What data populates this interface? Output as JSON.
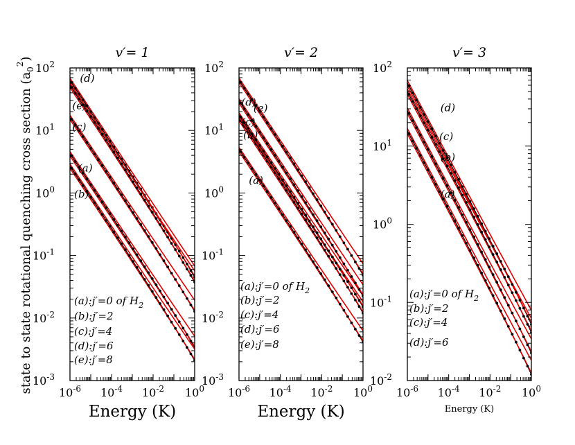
{
  "chart_data": [
    {
      "type": "line",
      "title": "v′= 1",
      "xlabel": "Energy (K)",
      "ylabel": "state to state rotational quenching cross section (a0^2)",
      "xscale": "log",
      "yscale": "log",
      "xlim": [
        1e-06,
        1
      ],
      "ylim": [
        0.001,
        100
      ],
      "x_ticks": [
        {
          "v": 1e-06,
          "base": "10",
          "exp": "-6"
        },
        {
          "v": 0.0001,
          "base": "10",
          "exp": "-4"
        },
        {
          "v": 0.01,
          "base": "10",
          "exp": "-2"
        },
        {
          "v": 1,
          "base": "10",
          "exp": "0"
        }
      ],
      "y_ticks": [
        {
          "v": 0.001,
          "base": "10",
          "exp": "-3"
        },
        {
          "v": 0.01,
          "base": "10",
          "exp": "-2"
        },
        {
          "v": 0.1,
          "base": "10",
          "exp": "-1"
        },
        {
          "v": 1,
          "base": "10",
          "exp": "0"
        },
        {
          "v": 10,
          "base": "10",
          "exp": "1"
        },
        {
          "v": 100,
          "base": "10",
          "exp": "2"
        }
      ],
      "series": [
        {
          "name": "(a)",
          "x": [
            5e-07,
            1
          ],
          "y": [
            6.0,
            0.0045
          ],
          "curve_label": {
            "x": 2.5e-06,
            "y": 2.2
          }
        },
        {
          "name": "(b)",
          "x": [
            5e-07,
            1
          ],
          "y": [
            3.8,
            0.0028
          ],
          "curve_label": {
            "x": 1.6e-06,
            "y": 0.85
          }
        },
        {
          "name": "(c)",
          "x": [
            5e-07,
            1
          ],
          "y": [
            23,
            0.017
          ],
          "curve_label": {
            "x": 1.3e-06,
            "y": 10
          }
        },
        {
          "name": "(d)",
          "x": [
            5e-07,
            1
          ],
          "y": [
            90,
            0.06
          ],
          "curve_label": {
            "x": 3e-06,
            "y": 60
          }
        },
        {
          "name": "(e)",
          "x": [
            5e-07,
            1
          ],
          "y": [
            75,
            0.05
          ],
          "curve_label": {
            "x": 1.3e-06,
            "y": 22
          }
        }
      ],
      "legend": {
        "position": "bottom-left",
        "entries": [
          {
            "label": "(a):j′=0 of H",
            "sub": "2"
          },
          {
            "label": "(b):j′=2",
            "sub": ""
          },
          {
            "label": "(c):j′=4",
            "sub": ""
          },
          {
            "label": "(d):j′=6",
            "sub": ""
          },
          {
            "label": "(e):j′=8",
            "sub": ""
          }
        ]
      }
    },
    {
      "type": "line",
      "title": "v′= 2",
      "xlabel": "Energy (K)",
      "xscale": "log",
      "yscale": "log",
      "xlim": [
        1e-06,
        1
      ],
      "ylim": [
        0.001,
        100
      ],
      "x_ticks": [
        {
          "v": 1e-06,
          "base": "10",
          "exp": "-6"
        },
        {
          "v": 0.0001,
          "base": "10",
          "exp": "-4"
        },
        {
          "v": 0.01,
          "base": "10",
          "exp": "-2"
        },
        {
          "v": 1,
          "base": "10",
          "exp": "0"
        }
      ],
      "y_ticks": [
        {
          "v": 0.001,
          "base": "10",
          "exp": "-3"
        },
        {
          "v": 0.01,
          "base": "10",
          "exp": "-2"
        },
        {
          "v": 0.1,
          "base": "10",
          "exp": "-1"
        },
        {
          "v": 1,
          "base": "10",
          "exp": "0"
        },
        {
          "v": 10,
          "base": "10",
          "exp": "1"
        },
        {
          "v": 100,
          "base": "10",
          "exp": "2"
        }
      ],
      "series": [
        {
          "name": "(a)",
          "x": [
            5e-07,
            1
          ],
          "y": [
            7.0,
            0.0055
          ],
          "curve_label": {
            "x": 3e-06,
            "y": 1.4
          }
        },
        {
          "name": "(b)",
          "x": [
            5e-07,
            1
          ],
          "y": [
            22,
            0.016
          ],
          "curve_label": {
            "x": 1.6e-06,
            "y": 7.5
          }
        },
        {
          "name": "(c)",
          "x": [
            5e-07,
            1
          ],
          "y": [
            25,
            0.02
          ],
          "curve_label": {
            "x": 1.3e-06,
            "y": 12
          }
        },
        {
          "name": "(d)",
          "x": [
            5e-07,
            1
          ],
          "y": [
            42,
            0.03
          ],
          "curve_label": {
            "x": 1.3e-06,
            "y": 25
          }
        },
        {
          "name": "(e)",
          "x": [
            5e-07,
            1
          ],
          "y": [
            90,
            0.065
          ],
          "curve_label": {
            "x": 5e-06,
            "y": 20
          }
        }
      ],
      "legend": {
        "position": "bottom-left",
        "entries": [
          {
            "label": "(a):j′=0 of H",
            "sub": "2"
          },
          {
            "label": "(b):j′=2",
            "sub": ""
          },
          {
            "label": "(c):j′=4",
            "sub": ""
          },
          {
            "label": "(d):j′=6",
            "sub": ""
          },
          {
            "label": "(e):j′=8",
            "sub": ""
          }
        ]
      }
    },
    {
      "type": "line",
      "title": "v′= 3",
      "xlabel": "Energy (K)",
      "xscale": "log",
      "yscale": "log",
      "xlim": [
        1e-06,
        1
      ],
      "ylim": [
        0.01,
        100
      ],
      "x_ticks": [
        {
          "v": 1e-06,
          "base": "10",
          "exp": "-6"
        },
        {
          "v": 0.0001,
          "base": "10",
          "exp": "-4"
        },
        {
          "v": 0.01,
          "base": "10",
          "exp": "-2"
        },
        {
          "v": 1,
          "base": "10",
          "exp": "0"
        }
      ],
      "y_ticks": [
        {
          "v": 0.01,
          "base": "10",
          "exp": "-2"
        },
        {
          "v": 0.1,
          "base": "10",
          "exp": "-1"
        },
        {
          "v": 1,
          "base": "10",
          "exp": "0"
        },
        {
          "v": 10,
          "base": "10",
          "exp": "1"
        },
        {
          "v": 100,
          "base": "10",
          "exp": "2"
        }
      ],
      "series": [
        {
          "name": "(a)",
          "x": [
            5e-07,
            1
          ],
          "y": [
            22,
            0.016
          ],
          "curve_label": {
            "x": 4e-05,
            "y": 2.2
          }
        },
        {
          "name": "(b)",
          "x": [
            5e-07,
            1
          ],
          "y": [
            40,
            0.03
          ],
          "curve_label": {
            "x": 4e-05,
            "y": 6.5
          }
        },
        {
          "name": "(c)",
          "x": [
            5e-07,
            1
          ],
          "y": [
            70,
            0.055
          ],
          "curve_label": {
            "x": 3.5e-05,
            "y": 12
          }
        },
        {
          "name": "(d)",
          "x": [
            5e-07,
            1
          ],
          "y": [
            90,
            0.07
          ],
          "curve_label": {
            "x": 4e-05,
            "y": 28
          }
        }
      ],
      "legend": {
        "position": "bottom-left",
        "entries": [
          {
            "label": "(a):j′=0 of H",
            "sub": "2"
          },
          {
            "label": "(b):j′=2",
            "sub": ""
          },
          {
            "label": "(c):j′=4",
            "sub": ""
          },
          {
            "label": "(d):j′=6",
            "sub": ""
          }
        ]
      }
    }
  ],
  "colors": {
    "exact": "#000000",
    "fit": "#e00000",
    "axes": "#000000",
    "background": "#ffffff"
  },
  "ylabel_parts": {
    "main": "state to state rotational quenching cross section (a",
    "sub": "0",
    "sup": "2",
    "close": ")"
  }
}
